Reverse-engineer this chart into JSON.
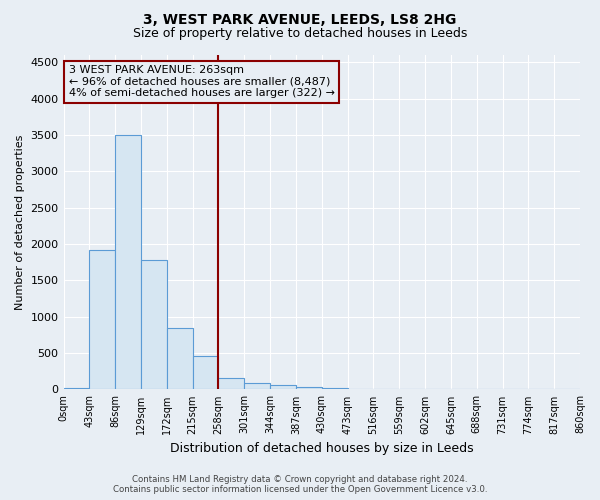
{
  "title": "3, WEST PARK AVENUE, LEEDS, LS8 2HG",
  "subtitle": "Size of property relative to detached houses in Leeds",
  "xlabel": "Distribution of detached houses by size in Leeds",
  "ylabel": "Number of detached properties",
  "footnote1": "Contains HM Land Registry data © Crown copyright and database right 2024.",
  "footnote2": "Contains public sector information licensed under the Open Government Licence v3.0.",
  "bin_labels": [
    "0sqm",
    "43sqm",
    "86sqm",
    "129sqm",
    "172sqm",
    "215sqm",
    "258sqm",
    "301sqm",
    "344sqm",
    "387sqm",
    "430sqm",
    "473sqm",
    "516sqm",
    "559sqm",
    "602sqm",
    "645sqm",
    "688sqm",
    "731sqm",
    "774sqm",
    "817sqm",
    "860sqm"
  ],
  "bar_values": [
    25,
    1920,
    3500,
    1780,
    850,
    455,
    160,
    95,
    55,
    40,
    25,
    0,
    0,
    0,
    0,
    0,
    0,
    0,
    0,
    0
  ],
  "bar_color": "#d6e6f2",
  "bar_edge_color": "#5b9bd5",
  "property_label": "3 WEST PARK AVENUE: 263sqm",
  "annotation_line1": "← 96% of detached houses are smaller (8,487)",
  "annotation_line2": "4% of semi-detached houses are larger (322) →",
  "vline_color": "#8b0000",
  "vline_x_index": 6,
  "annotation_box_edge_color": "#8b0000",
  "ylim": [
    0,
    4600
  ],
  "yticks": [
    0,
    500,
    1000,
    1500,
    2000,
    2500,
    3000,
    3500,
    4000,
    4500
  ],
  "bg_color": "#e8eef4",
  "grid_color": "#ffffff",
  "title_fontsize": 10,
  "subtitle_fontsize": 9
}
